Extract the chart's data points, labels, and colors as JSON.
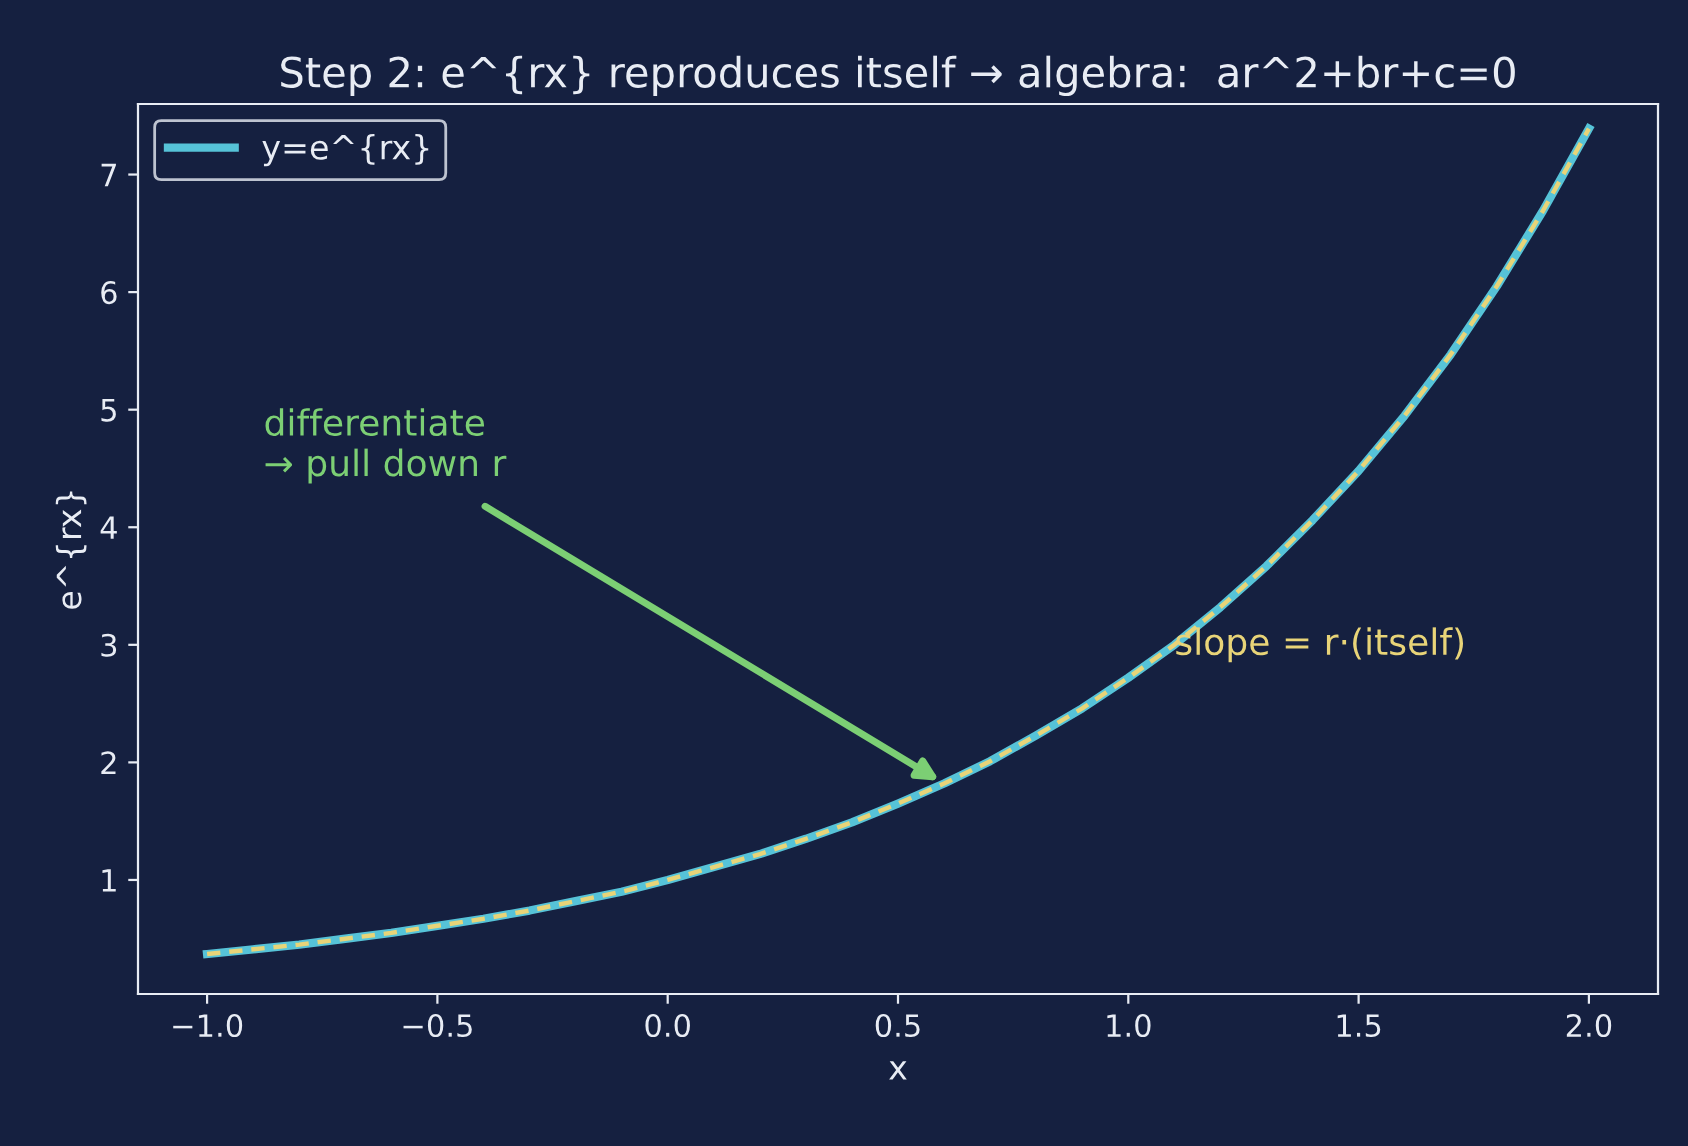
{
  "chart_data": {
    "type": "line",
    "title": "Step 2: e^{rx} reproduces itself → algebra:  ar^2+br+c=0",
    "xlabel": "x",
    "ylabel": "e^{rx}",
    "x": [
      -1.0,
      -0.9,
      -0.8,
      -0.7,
      -0.6,
      -0.5,
      -0.4,
      -0.3,
      -0.2,
      -0.1,
      0.0,
      0.1,
      0.2,
      0.3,
      0.4,
      0.5,
      0.6,
      0.7,
      0.8,
      0.9,
      1.0,
      1.1,
      1.2,
      1.3,
      1.4,
      1.5,
      1.6,
      1.7,
      1.8,
      1.9,
      2.0
    ],
    "series": [
      {
        "name": "y=e^{rx}",
        "color": "#56c3d8",
        "line_style": "solid",
        "values": [
          0.37,
          0.41,
          0.45,
          0.5,
          0.55,
          0.61,
          0.67,
          0.74,
          0.82,
          0.9,
          1.0,
          1.11,
          1.22,
          1.35,
          1.49,
          1.65,
          1.82,
          2.01,
          2.23,
          2.46,
          2.72,
          3.0,
          3.32,
          3.67,
          4.06,
          4.48,
          4.95,
          5.47,
          6.05,
          6.69,
          7.39
        ]
      },
      {
        "color": "#e8d478",
        "line_style": "dashed",
        "values": [
          0.37,
          0.41,
          0.45,
          0.5,
          0.55,
          0.61,
          0.67,
          0.74,
          0.82,
          0.9,
          1.0,
          1.11,
          1.22,
          1.35,
          1.49,
          1.65,
          1.82,
          2.01,
          2.23,
          2.46,
          2.72,
          3.0,
          3.32,
          3.67,
          4.06,
          4.48,
          4.95,
          5.47,
          6.05,
          6.69,
          7.39
        ]
      }
    ],
    "annotations": [
      {
        "text": "differentiate\n→ pull down r",
        "x": 0.6,
        "y": 1.82
      },
      {
        "text": "slope = r·(itself)",
        "x": 1.1,
        "y": 3.0
      }
    ],
    "xlim": [
      -1.15,
      2.15
    ],
    "ylim": [
      0.03,
      7.6
    ],
    "xticks": [
      {
        "value": -1.0,
        "label": "−1.0"
      },
      {
        "value": -0.5,
        "label": "−0.5"
      },
      {
        "value": 0.0,
        "label": "0.0"
      },
      {
        "value": 0.5,
        "label": "0.5"
      },
      {
        "value": 1.0,
        "label": "1.0"
      },
      {
        "value": 1.5,
        "label": "1.5"
      },
      {
        "value": 2.0,
        "label": "2.0"
      }
    ],
    "yticks": [
      1,
      2,
      3,
      4,
      5,
      6,
      7
    ],
    "grid": false,
    "legend": "top left"
  }
}
